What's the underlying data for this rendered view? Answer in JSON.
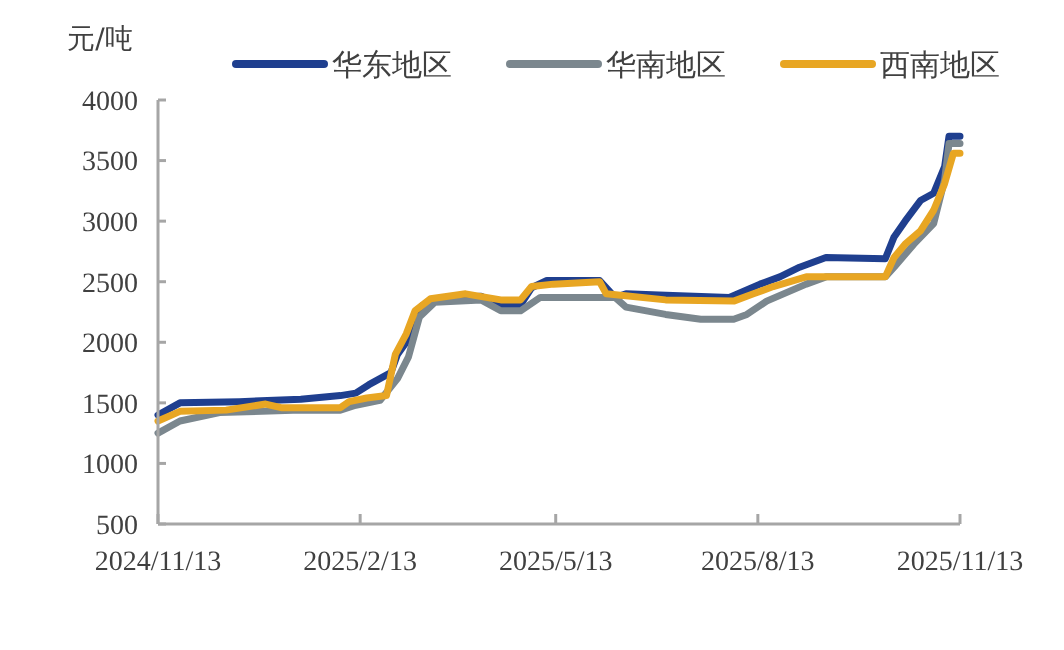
{
  "chart_data": {
    "type": "line",
    "ylabel": "元/吨",
    "legend": "top",
    "grid": false,
    "line_style": "solid",
    "marker": "none",
    "xlim": [
      "2024-11-13",
      "2025-11-13"
    ],
    "xticks": [
      {
        "value": "2024-11-13",
        "label": "2024/11/13"
      },
      {
        "value": "2025-02-13",
        "label": "2025/2/13"
      },
      {
        "value": "2025-05-13",
        "label": "2025/5/13"
      },
      {
        "value": "2025-08-13",
        "label": "2025/8/13"
      },
      {
        "value": "2025-11-13",
        "label": "2025/11/13"
      }
    ],
    "ylim": [
      500,
      4000
    ],
    "yticks": [
      500,
      1000,
      1500,
      2000,
      2500,
      3000,
      3500,
      4000
    ],
    "series": [
      {
        "name": "华东地区",
        "color": "#1f3f8f",
        "x": [
          "2024-11-13",
          "2024-11-23",
          "2024-12-20",
          "2025-01-17",
          "2025-02-04",
          "2025-02-11",
          "2025-02-17",
          "2025-02-22",
          "2025-02-27",
          "2025-03-02",
          "2025-03-06",
          "2025-03-10",
          "2025-03-13",
          "2025-03-20",
          "2025-04-09",
          "2025-04-18",
          "2025-04-27",
          "2025-05-02",
          "2025-05-09",
          "2025-06-02",
          "2025-06-09",
          "2025-06-14",
          "2025-06-29",
          "2025-07-31",
          "2025-08-14",
          "2025-08-23",
          "2025-09-01",
          "2025-09-13",
          "2025-10-10",
          "2025-10-14",
          "2025-10-19",
          "2025-10-26",
          "2025-11-01",
          "2025-11-06",
          "2025-11-08",
          "2025-11-13"
        ],
        "values": [
          1400,
          1500,
          1510,
          1530,
          1560,
          1580,
          1650,
          1700,
          1750,
          1900,
          2000,
          2150,
          2300,
          2360,
          2380,
          2300,
          2310,
          2450,
          2510,
          2510,
          2370,
          2400,
          2390,
          2370,
          2480,
          2540,
          2620,
          2700,
          2690,
          2870,
          3000,
          3170,
          3230,
          3450,
          3700,
          3700
        ]
      },
      {
        "name": "华南地区",
        "color": "#7b878e",
        "x": [
          "2024-11-13",
          "2024-11-23",
          "2024-12-11",
          "2025-01-17",
          "2025-02-04",
          "2025-02-11",
          "2025-02-22",
          "2025-03-02",
          "2025-03-07",
          "2025-03-12",
          "2025-03-19",
          "2025-04-09",
          "2025-04-18",
          "2025-04-27",
          "2025-05-06",
          "2025-06-09",
          "2025-06-14",
          "2025-07-02",
          "2025-07-18",
          "2025-08-02",
          "2025-08-08",
          "2025-08-17",
          "2025-09-04",
          "2025-09-13",
          "2025-10-10",
          "2025-10-14",
          "2025-10-23",
          "2025-11-01",
          "2025-11-06",
          "2025-11-08",
          "2025-11-13"
        ],
        "values": [
          1250,
          1350,
          1420,
          1440,
          1440,
          1480,
          1520,
          1700,
          1880,
          2210,
          2330,
          2350,
          2260,
          2260,
          2370,
          2370,
          2290,
          2230,
          2190,
          2190,
          2230,
          2340,
          2480,
          2540,
          2540,
          2620,
          2810,
          2980,
          3340,
          3640,
          3640
        ]
      },
      {
        "name": "西南地区",
        "color": "#e8a623",
        "x": [
          "2024-11-13",
          "2024-11-23",
          "2024-12-14",
          "2025-01-01",
          "2025-01-08",
          "2025-02-04",
          "2025-02-08",
          "2025-02-16",
          "2025-02-25",
          "2025-03-01",
          "2025-03-06",
          "2025-03-10",
          "2025-03-17",
          "2025-04-02",
          "2025-04-18",
          "2025-04-27",
          "2025-05-02",
          "2025-05-12",
          "2025-06-02",
          "2025-06-05",
          "2025-07-02",
          "2025-08-02",
          "2025-08-11",
          "2025-08-20",
          "2025-09-04",
          "2025-10-10",
          "2025-10-14",
          "2025-10-19",
          "2025-10-26",
          "2025-11-01",
          "2025-11-06",
          "2025-11-10",
          "2025-11-13"
        ],
        "values": [
          1350,
          1430,
          1440,
          1490,
          1460,
          1460,
          1510,
          1540,
          1560,
          1900,
          2070,
          2260,
          2360,
          2400,
          2350,
          2350,
          2460,
          2480,
          2500,
          2400,
          2350,
          2340,
          2400,
          2460,
          2540,
          2540,
          2700,
          2810,
          2920,
          3090,
          3310,
          3560,
          3560
        ]
      }
    ]
  }
}
